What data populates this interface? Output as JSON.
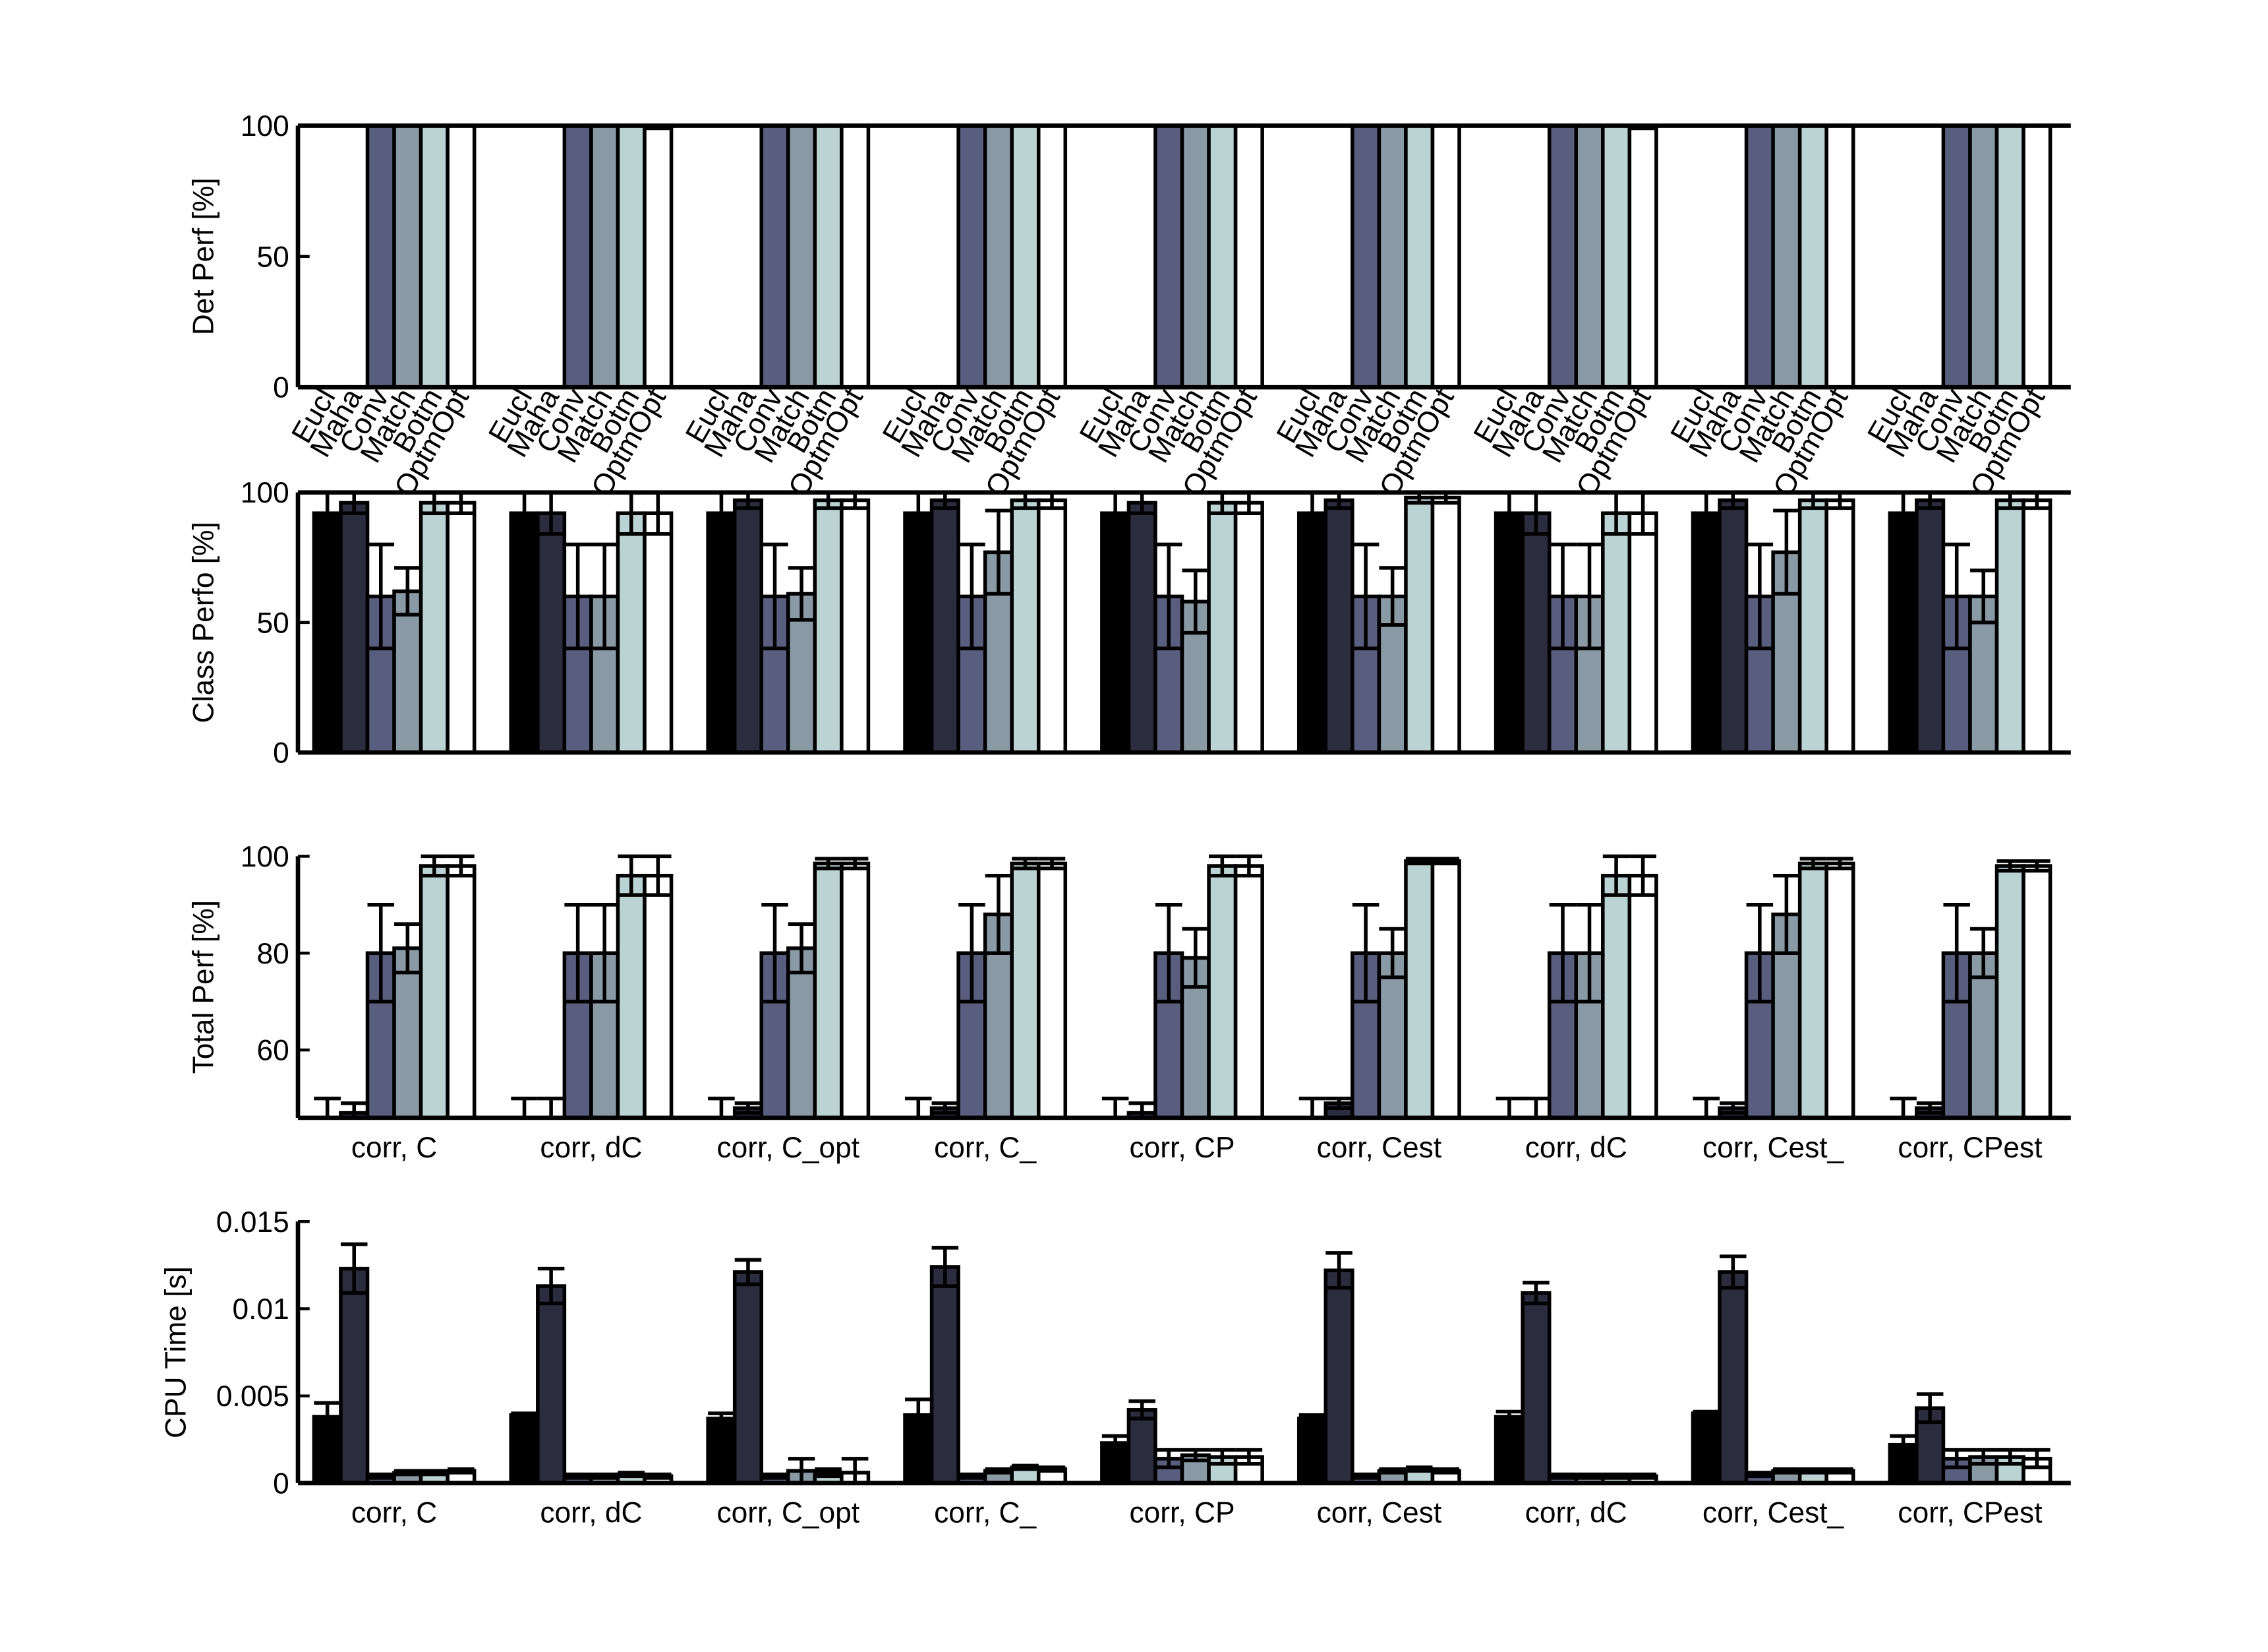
{
  "chart_data": [
    {
      "type": "bar",
      "ylabel": "Det Perf [%]",
      "ylim": [
        0,
        100
      ],
      "yticks": [
        0,
        50,
        100
      ],
      "series": [
        {
          "name": "Eucl",
          "color": "#000000",
          "values": [
            0,
            0,
            0,
            0,
            0,
            0,
            0,
            0,
            0
          ]
        },
        {
          "name": "Maha",
          "color": "#2b2c3e",
          "values": [
            0,
            0,
            0,
            0,
            0,
            0,
            0,
            0,
            0
          ]
        },
        {
          "name": "Conv",
          "color": "#5a5e7e",
          "values": [
            100,
            100,
            100,
            100,
            100,
            100,
            100,
            100,
            100
          ]
        },
        {
          "name": "Match",
          "color": "#8a9aa5",
          "values": [
            100,
            100,
            100,
            100,
            100,
            100,
            100,
            100,
            100
          ]
        },
        {
          "name": "Botm",
          "color": "#bcd3d3",
          "values": [
            100,
            100,
            100,
            100,
            100,
            100,
            100,
            100,
            100
          ]
        },
        {
          "name": "OptmOpt",
          "color": "#ffffff",
          "values": [
            100,
            99,
            100,
            100,
            100,
            100,
            99,
            100,
            100
          ]
        }
      ]
    },
    {
      "type": "bar",
      "ylabel": "Class Perfo [%]",
      "ylim": [
        0,
        100
      ],
      "yticks": [
        0,
        50,
        100
      ],
      "series": [
        {
          "color": "#000000",
          "values": [
            92,
            92,
            92,
            92,
            92,
            92,
            92,
            92,
            92
          ],
          "errors": [
            8,
            8,
            8,
            8,
            8,
            8,
            8,
            8,
            8
          ]
        },
        {
          "color": "#2b2c3e",
          "values": [
            96,
            92,
            97,
            97,
            96,
            97,
            92,
            97,
            97
          ],
          "errors": [
            4,
            8,
            3,
            3,
            4,
            3,
            8,
            3,
            3
          ]
        },
        {
          "color": "#5a5e7e",
          "values": [
            60,
            60,
            60,
            60,
            60,
            60,
            60,
            60,
            60
          ],
          "errors": [
            20,
            20,
            20,
            20,
            20,
            20,
            20,
            20,
            20
          ]
        },
        {
          "color": "#8a9aa5",
          "values": [
            62,
            60,
            61,
            77,
            58,
            60,
            60,
            77,
            60
          ],
          "errors": [
            9,
            20,
            10,
            16,
            12,
            11,
            20,
            16,
            10
          ]
        },
        {
          "color": "#bcd3d3",
          "values": [
            96,
            92,
            97,
            97,
            96,
            98,
            92,
            97,
            97
          ],
          "errors": [
            4,
            8,
            3,
            3,
            4,
            2,
            8,
            3,
            3
          ]
        },
        {
          "color": "#ffffff",
          "values": [
            96,
            92,
            97,
            97,
            96,
            98,
            92,
            97,
            97
          ],
          "errors": [
            4,
            8,
            3,
            3,
            4,
            2,
            8,
            3,
            3
          ]
        }
      ]
    },
    {
      "type": "bar",
      "ylabel": "Total Perf [%]",
      "ylim": [
        46,
        100
      ],
      "yticks": [
        60,
        80,
        100
      ],
      "categories": [
        "corr, C",
        "corr, dC",
        "corr, C_opt",
        "corr, C_",
        "corr, CP",
        "corr, Cest",
        "corr, dC",
        "corr, Cest_",
        "corr, CPest"
      ],
      "series": [
        {
          "color": "#000000",
          "values": [
            46,
            46,
            46,
            46,
            46,
            46,
            46,
            46,
            46
          ],
          "errors": [
            4,
            4,
            4,
            4,
            4,
            4,
            4,
            4,
            4
          ]
        },
        {
          "color": "#2b2c3e",
          "values": [
            47,
            46,
            48,
            48,
            47,
            49,
            46,
            48,
            48
          ],
          "errors": [
            2,
            4,
            1,
            1,
            2,
            1,
            4,
            1,
            1
          ]
        },
        {
          "color": "#5a5e7e",
          "values": [
            80,
            80,
            80,
            80,
            80,
            80,
            80,
            80,
            80
          ],
          "errors": [
            10,
            10,
            10,
            10,
            10,
            10,
            10,
            10,
            10
          ]
        },
        {
          "color": "#8a9aa5",
          "values": [
            81,
            80,
            81,
            88,
            79,
            80,
            80,
            88,
            80
          ],
          "errors": [
            5,
            10,
            5,
            8,
            6,
            5,
            10,
            8,
            5
          ]
        },
        {
          "color": "#bcd3d3",
          "values": [
            98,
            96,
            98.5,
            98.5,
            98,
            99,
            96,
            98.5,
            98
          ],
          "errors": [
            2,
            4,
            1,
            1,
            2,
            0.5,
            4,
            1,
            1
          ]
        },
        {
          "color": "#ffffff",
          "values": [
            98,
            96,
            98.5,
            98.5,
            98,
            99,
            96,
            98.5,
            98
          ],
          "errors": [
            2,
            4,
            1,
            1,
            2,
            0.5,
            4,
            1,
            1
          ]
        }
      ]
    },
    {
      "type": "bar",
      "ylabel": "CPU Time [s]",
      "ylim": [
        0,
        0.015
      ],
      "yticks": [
        0,
        0.005,
        0.01,
        0.015
      ],
      "categories": [
        "corr, C",
        "corr, dC",
        "corr, C_opt",
        "corr, C_",
        "corr, CP",
        "corr, Cest",
        "corr, dC",
        "corr, Cest_",
        "corr, CPest"
      ],
      "series": [
        {
          "color": "#000000",
          "values": [
            0.0038,
            0.0039,
            0.0037,
            0.0039,
            0.0023,
            0.0037,
            0.0038,
            0.004,
            0.0022
          ],
          "errors": [
            0.0008,
            0.0001,
            0.0003,
            0.0009,
            0.0004,
            0.0002,
            0.0003,
            0.0001,
            0.0005
          ]
        },
        {
          "color": "#2b2c3e",
          "values": [
            0.0123,
            0.0113,
            0.0121,
            0.0124,
            0.0042,
            0.0122,
            0.0109,
            0.0121,
            0.0043
          ],
          "errors": [
            0.0014,
            0.001,
            0.0007,
            0.0011,
            0.0005,
            0.001,
            0.0006,
            0.0009,
            0.0008
          ]
        },
        {
          "color": "#5a5e7e",
          "values": [
            0.0004,
            0.0004,
            0.0004,
            0.0004,
            0.0014,
            0.0004,
            0.0004,
            0.0005,
            0.0014
          ],
          "errors": [
            0.0001,
            0.0001,
            0.0001,
            0.0001,
            0.0005,
            0.0001,
            0.0001,
            0.0001,
            0.0005
          ]
        },
        {
          "color": "#8a9aa5",
          "values": [
            0.0006,
            0.0004,
            0.0007,
            0.0007,
            0.0016,
            0.0007,
            0.0004,
            0.0007,
            0.0015
          ],
          "errors": [
            0.0001,
            0.0001,
            0.0007,
            0.0001,
            0.0003,
            0.0001,
            0.0001,
            0.0001,
            0.0004
          ]
        },
        {
          "color": "#bcd3d3",
          "values": [
            0.0006,
            0.0005,
            0.0006,
            0.0009,
            0.0015,
            0.0008,
            0.0004,
            0.0007,
            0.0015
          ],
          "errors": [
            0.0001,
            0.0001,
            0.0002,
            0.0001,
            0.0004,
            0.0001,
            0.0001,
            0.0001,
            0.0004
          ]
        },
        {
          "color": "#ffffff",
          "values": [
            0.0007,
            0.0004,
            0.0006,
            0.0008,
            0.0015,
            0.0007,
            0.0004,
            0.0007,
            0.0014
          ],
          "errors": [
            0.0001,
            0.0001,
            0.0008,
            0.0001,
            0.0004,
            0.0001,
            0.0001,
            0.0001,
            0.0005
          ]
        }
      ]
    }
  ]
}
